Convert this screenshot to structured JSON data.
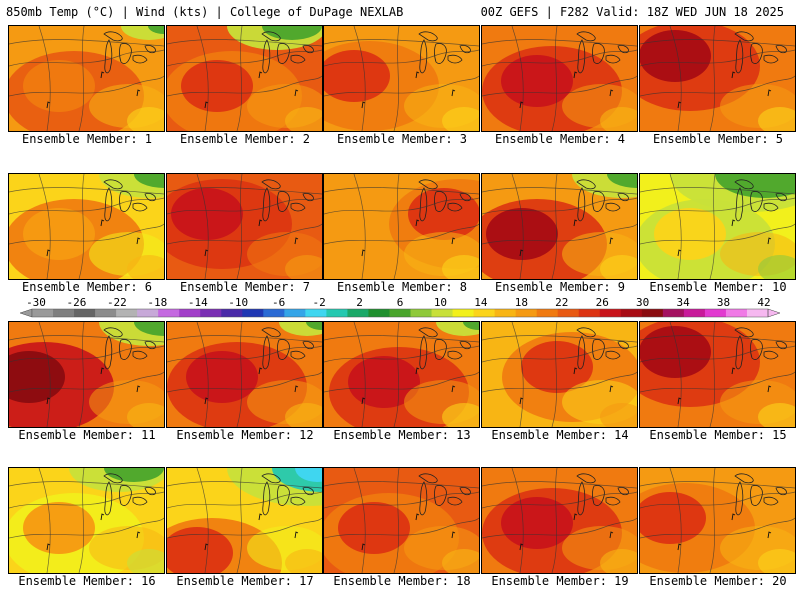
{
  "header": {
    "left": "850mb Temp (°C) | Wind (kts) | College of DuPage NEXLAB",
    "right": "00Z GEFS | F282 Valid: 18Z WED JUN 18 2025"
  },
  "members": [
    {
      "label": "Ensemble Member: 1",
      "scheme": "warm-orange",
      "cool_corner": "ne-green-small"
    },
    {
      "label": "Ensemble Member: 2",
      "scheme": "red-orange",
      "cool_corner": "n-green"
    },
    {
      "label": "Ensemble Member: 3",
      "scheme": "orange-red-west",
      "cool_corner": "none"
    },
    {
      "label": "Ensemble Member: 4",
      "scheme": "red-band",
      "cool_corner": "none"
    },
    {
      "label": "Ensemble Member: 5",
      "scheme": "hot-nw",
      "cool_corner": "none"
    },
    {
      "label": "Ensemble Member: 6",
      "scheme": "yellow-orange",
      "cool_corner": "ne-green"
    },
    {
      "label": "Ensemble Member: 7",
      "scheme": "red-hot",
      "cool_corner": "none"
    },
    {
      "label": "Ensemble Member: 8",
      "scheme": "orange-red-east",
      "cool_corner": "none"
    },
    {
      "label": "Ensemble Member: 9",
      "scheme": "hot-sw",
      "cool_corner": "ne-green"
    },
    {
      "label": "Ensemble Member: 10",
      "scheme": "yellow-green",
      "cool_corner": "n-green-big"
    },
    {
      "label": "Ensemble Member: 11",
      "scheme": "hot-west",
      "cool_corner": "ne-green"
    },
    {
      "label": "Ensemble Member: 12",
      "scheme": "red-band",
      "cool_corner": "ne-green-small"
    },
    {
      "label": "Ensemble Member: 13",
      "scheme": "red-diag",
      "cool_corner": "ne-green-small"
    },
    {
      "label": "Ensemble Member: 14",
      "scheme": "orange-center",
      "cool_corner": "none"
    },
    {
      "label": "Ensemble Member: 15",
      "scheme": "hot-nw",
      "cool_corner": "none"
    },
    {
      "label": "Ensemble Member: 16",
      "scheme": "yellow-green-n",
      "cool_corner": "n-green"
    },
    {
      "label": "Ensemble Member: 17",
      "scheme": "cool-ne",
      "cool_corner": "ne-cyan"
    },
    {
      "label": "Ensemble Member: 18",
      "scheme": "red-orange",
      "cool_corner": "none"
    },
    {
      "label": "Ensemble Member: 19",
      "scheme": "red-band",
      "cool_corner": "none"
    },
    {
      "label": "Ensemble Member: 20",
      "scheme": "orange-red-west",
      "cool_corner": "none"
    }
  ],
  "colorbar": {
    "labels": [
      "-30",
      "-26",
      "-22",
      "-18",
      "-14",
      "-10",
      "-6",
      "-2",
      "2",
      "6",
      "10",
      "14",
      "18",
      "22",
      "26",
      "30",
      "34",
      "38",
      "42"
    ],
    "colors": [
      "#9a9a9a",
      "#7f7f7f",
      "#656565",
      "#8c8c8c",
      "#b3b3b3",
      "#c7a9d8",
      "#c469e0",
      "#a23fc9",
      "#7a2fb3",
      "#4a2aa8",
      "#1f37b3",
      "#2a6ad4",
      "#35a5e8",
      "#3fd6f0",
      "#25c8b0",
      "#1aa868",
      "#1f8f2e",
      "#4aa52c",
      "#8fc93a",
      "#c8e03a",
      "#f2f01c",
      "#fbd41a",
      "#f8b514",
      "#f59a12",
      "#f07a10",
      "#e85a12",
      "#dc3412",
      "#c8141a",
      "#a80c14",
      "#8a0c10",
      "#a41160",
      "#c81a9a",
      "#e23ad0",
      "#f07ae6",
      "#f6b8f0"
    ]
  }
}
